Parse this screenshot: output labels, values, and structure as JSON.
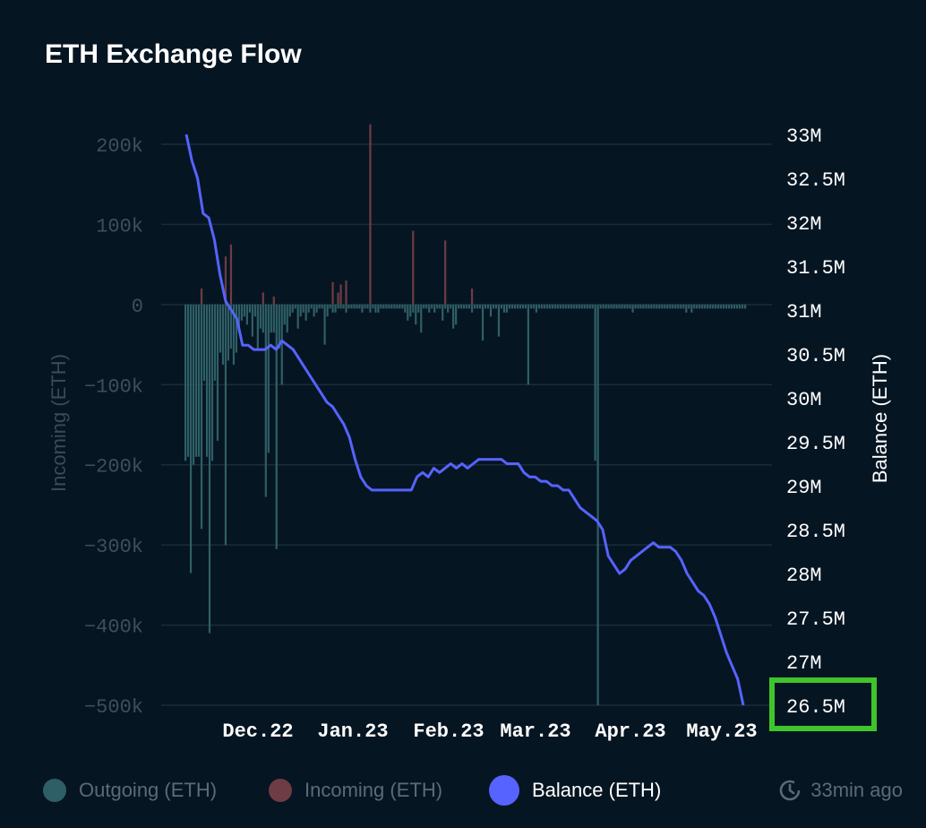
{
  "title": "ETH Exchange Flow",
  "legend": [
    {
      "label": "Outgoing (ETH)",
      "color": "#2e5f66"
    },
    {
      "label": "Incoming (ETH)",
      "color": "#6e3c45"
    },
    {
      "label": "Balance (ETH)",
      "color": "#5663ff"
    }
  ],
  "updated": "33min ago",
  "highlight_label": "26.5M",
  "chart_data": {
    "type": "bar+line",
    "title": "ETH Exchange Flow",
    "ylabel_left": "Incoming (ETH)",
    "ylabel_right": "Balance (ETH)",
    "y_left_ticks": [
      "200k",
      "100k",
      "0",
      "−100k",
      "−200k",
      "−300k",
      "−400k",
      "−500k"
    ],
    "y_left_range": [
      -500000,
      200000
    ],
    "y_right_ticks": [
      "33M",
      "32.5M",
      "32M",
      "31.5M",
      "31M",
      "30.5M",
      "30M",
      "29.5M",
      "29M",
      "28.5M",
      "28M",
      "27.5M",
      "27M",
      "26.5M"
    ],
    "y_right_range": [
      26.5,
      33
    ],
    "x_ticks": [
      "Dec.22",
      "Jan.23",
      "Feb.23",
      "Mar.23",
      "Apr.23",
      "May.23"
    ],
    "grid": true,
    "legend_position": "bottom",
    "series": [
      {
        "name": "Incoming (ETH)",
        "type": "bar",
        "color": "#6e3c45",
        "units": "k ETH",
        "values": [
          0,
          0,
          0,
          0,
          0,
          0,
          20,
          0,
          0,
          0,
          0,
          0,
          0,
          0,
          0,
          60,
          0,
          75,
          0,
          0,
          0,
          0,
          0,
          0,
          0,
          0,
          0,
          0,
          0,
          15,
          0,
          0,
          0,
          10,
          0,
          0,
          0,
          0,
          0,
          0,
          0,
          0,
          0,
          0,
          0,
          0,
          0,
          0,
          0,
          0,
          0,
          0,
          0,
          0,
          0,
          28,
          0,
          15,
          25,
          0,
          30,
          0,
          0,
          0,
          0,
          0,
          0,
          0,
          0,
          225,
          0,
          0,
          0,
          0,
          0,
          0,
          0,
          0,
          0,
          0,
          0,
          0,
          0,
          0,
          0,
          92,
          0,
          0,
          0,
          0,
          0,
          0,
          0,
          0,
          0,
          0,
          0,
          80,
          0,
          0,
          0,
          0,
          0,
          0,
          0,
          0,
          0,
          20,
          0,
          0,
          0,
          0,
          0,
          0,
          0,
          0,
          0,
          0,
          0,
          0,
          0,
          0,
          0,
          0,
          0,
          0,
          0,
          0,
          0,
          0,
          0,
          0,
          0,
          0,
          0,
          0,
          0,
          0,
          0,
          0,
          0,
          0,
          0,
          0,
          0,
          0,
          0,
          0,
          0,
          0,
          0,
          0,
          0,
          0,
          0,
          0,
          0,
          0,
          0,
          0,
          0,
          0,
          0,
          0,
          0,
          0,
          0,
          0,
          0,
          0,
          0,
          0,
          0,
          0,
          0,
          0,
          0,
          0,
          0,
          0,
          0,
          0,
          0,
          0,
          0,
          0,
          0,
          0,
          0,
          0,
          0,
          0,
          0,
          0,
          0,
          0,
          0,
          0,
          0,
          0,
          0,
          0,
          0,
          0
        ]
      },
      {
        "name": "Outgoing (ETH)",
        "type": "bar",
        "color": "#2e5f66",
        "units": "k ETH",
        "values": [
          -195,
          -190,
          -335,
          -200,
          -190,
          -190,
          -280,
          -95,
          -190,
          -410,
          -195,
          -95,
          -170,
          -60,
          -75,
          -300,
          -70,
          -55,
          -75,
          -60,
          -35,
          -20,
          -15,
          -25,
          -10,
          -40,
          -15,
          -55,
          -30,
          -35,
          -240,
          -185,
          -35,
          -35,
          -305,
          -55,
          -100,
          -25,
          -35,
          -15,
          -10,
          -5,
          -30,
          -15,
          -10,
          -20,
          -10,
          -5,
          -15,
          -10,
          -5,
          -5,
          -50,
          -15,
          -5,
          -10,
          -10,
          -5,
          -5,
          -5,
          -10,
          -5,
          -5,
          -5,
          -5,
          -5,
          -10,
          -5,
          -5,
          -10,
          -5,
          -10,
          -10,
          -5,
          -5,
          -5,
          -5,
          -5,
          -5,
          -5,
          -5,
          -5,
          -10,
          -20,
          -15,
          -10,
          -25,
          -10,
          -35,
          -5,
          -5,
          -10,
          -5,
          -10,
          -5,
          -5,
          -20,
          -5,
          -10,
          -5,
          -30,
          -25,
          -5,
          -5,
          -5,
          -5,
          -5,
          -10,
          -5,
          -5,
          -5,
          -45,
          -5,
          -5,
          -15,
          -5,
          -5,
          -40,
          -5,
          -10,
          -10,
          -5,
          -5,
          -5,
          -5,
          -5,
          -5,
          -5,
          -100,
          -5,
          -5,
          -10,
          -5,
          -5,
          -5,
          -5,
          -5,
          -5,
          -5,
          -5,
          -5,
          -5,
          -5,
          -5,
          -5,
          -5,
          -5,
          -5,
          -5,
          -5,
          -5,
          -5,
          -5,
          -195,
          -500,
          -5,
          -5,
          -5,
          -5,
          -5,
          -5,
          -5,
          -5,
          -5,
          -5,
          -5,
          -5,
          -10,
          -5,
          -5,
          -5,
          -5,
          -5,
          -5,
          -5,
          -5,
          -5,
          -5,
          -5,
          -5,
          -5,
          -5,
          -5,
          -5,
          -5,
          -5,
          -5,
          -10,
          -5,
          -10,
          -5,
          -5,
          -5,
          -5,
          -5,
          -5,
          -5,
          -5,
          -5,
          -5,
          -5,
          -5,
          -5,
          -5,
          -5,
          -5,
          -5,
          -5,
          -5,
          -5
        ]
      },
      {
        "name": "Balance (ETH)",
        "type": "line",
        "color": "#5663ff",
        "units": "M ETH",
        "values": [
          33.0,
          32.7,
          32.5,
          32.1,
          32.05,
          31.8,
          31.4,
          31.1,
          31.0,
          30.9,
          30.6,
          30.6,
          30.55,
          30.55,
          30.55,
          30.6,
          30.55,
          30.65,
          30.6,
          30.55,
          30.45,
          30.35,
          30.25,
          30.15,
          30.05,
          29.95,
          29.9,
          29.8,
          29.7,
          29.55,
          29.3,
          29.1,
          29.0,
          28.95,
          28.95,
          28.95,
          28.95,
          28.95,
          28.95,
          28.95,
          28.95,
          29.1,
          29.15,
          29.1,
          29.2,
          29.15,
          29.2,
          29.25,
          29.2,
          29.25,
          29.2,
          29.25,
          29.3,
          29.3,
          29.3,
          29.3,
          29.3,
          29.25,
          29.25,
          29.25,
          29.15,
          29.1,
          29.1,
          29.05,
          29.05,
          29.0,
          29.0,
          28.95,
          28.95,
          28.85,
          28.75,
          28.7,
          28.65,
          28.6,
          28.5,
          28.2,
          28.1,
          28.0,
          28.05,
          28.15,
          28.2,
          28.25,
          28.3,
          28.35,
          28.3,
          28.3,
          28.3,
          28.25,
          28.15,
          28.0,
          27.9,
          27.8,
          27.75,
          27.65,
          27.5,
          27.3,
          27.1,
          26.95,
          26.8,
          26.5
        ]
      }
    ]
  }
}
